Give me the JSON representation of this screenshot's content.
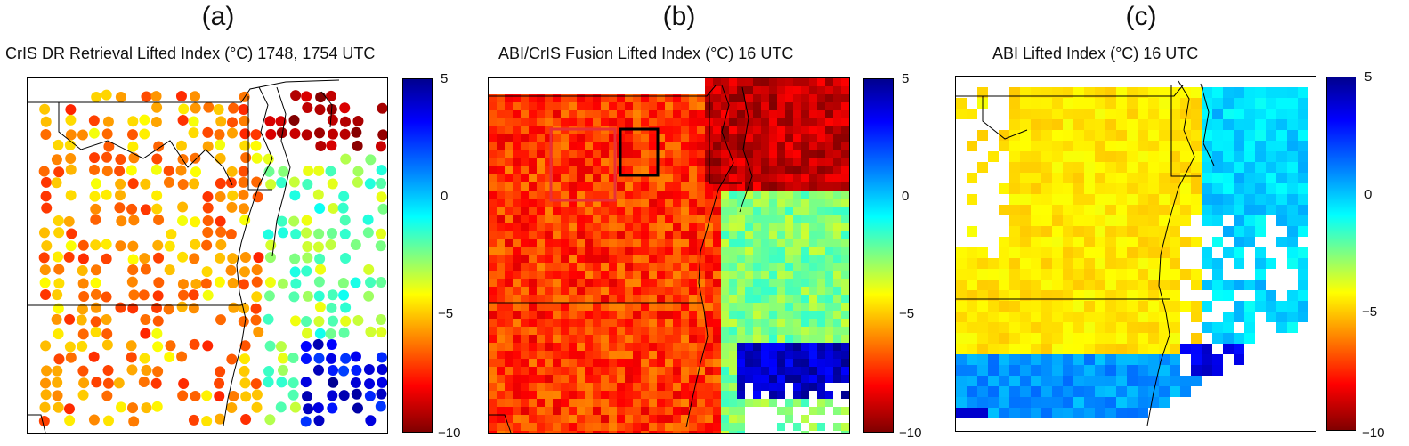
{
  "panels": [
    {
      "letter": "(a)",
      "title": "CrIS DR Retrieval Lifted Index (°C) 1748, 1754 UTC",
      "colorbar_ticks": [
        "5",
        "0",
        "−5",
        "−10"
      ]
    },
    {
      "letter": "(b)",
      "title": "ABI/CrIS Fusion Lifted Index (°C)  16 UTC",
      "colorbar_ticks": [
        "5",
        "0",
        "−5",
        "−10"
      ]
    },
    {
      "letter": "(c)",
      "title": "ABI Lifted Index (°C)  16 UTC",
      "colorbar_ticks": [
        "5",
        "0",
        "−5",
        "−10"
      ]
    }
  ],
  "colorbar": {
    "min": -10,
    "max": 5,
    "colormap": "jet-reversed"
  },
  "colors": {
    "highlight_red_box": "#e8303a",
    "highlight_black_box": "#000000"
  }
}
